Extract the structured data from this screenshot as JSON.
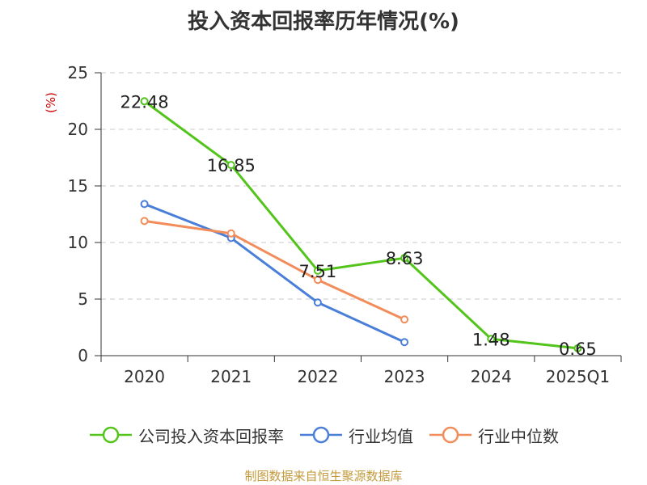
{
  "chart_data": {
    "type": "line",
    "title": "投入资本回报率历年情况(%)",
    "ylabel": "(%)",
    "categories": [
      "2020",
      "2021",
      "2022",
      "2023",
      "2024",
      "2025Q1"
    ],
    "ylim": [
      0,
      25
    ],
    "yticks": [
      0,
      5,
      10,
      15,
      20,
      25
    ],
    "grid": true,
    "legend_position": "bottom",
    "series": [
      {
        "name": "公司投入资本回报率",
        "color": "#52C41A",
        "values": [
          22.48,
          16.85,
          7.51,
          8.63,
          1.48,
          0.65
        ],
        "labels": [
          "22.48",
          "16.85",
          "7.51",
          "8.63",
          "1.48",
          "0.65"
        ]
      },
      {
        "name": "行业均值",
        "color": "#4A7FD9",
        "values": [
          13.4,
          10.4,
          4.7,
          1.2,
          null,
          null
        ]
      },
      {
        "name": "行业中位数",
        "color": "#F28C5A",
        "values": [
          11.9,
          10.8,
          6.7,
          3.2,
          null,
          null
        ]
      }
    ]
  },
  "footer": {
    "source": "制图数据来自恒生聚源数据库"
  }
}
